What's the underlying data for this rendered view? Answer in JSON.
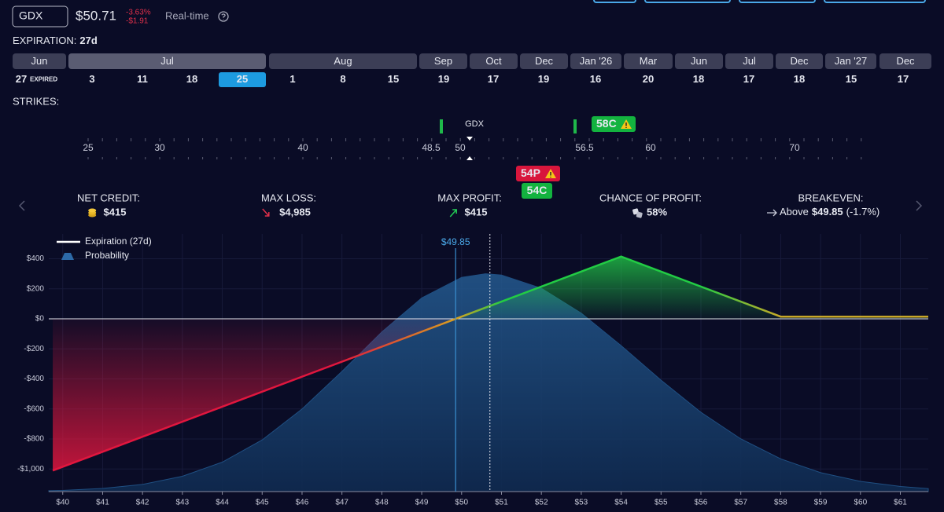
{
  "header": {
    "symbol": "GDX",
    "price": "$50.71",
    "change_pct": "-3.63%",
    "change_abs": "-$1.91",
    "feed": "Real-time"
  },
  "expiration": {
    "label": "EXPIRATION:",
    "days": "27d",
    "months": [
      "Jun",
      "Jul",
      "Aug",
      "Sep",
      "Oct",
      "Dec",
      "Jan '26",
      "Mar",
      "Jun",
      "Jul",
      "Dec",
      "Jan '27",
      "Dec"
    ],
    "dates": [
      "27",
      "3",
      "11",
      "18",
      "25",
      "1",
      "8",
      "15",
      "19",
      "17",
      "19",
      "16",
      "20",
      "18",
      "17",
      "18",
      "15",
      "17"
    ],
    "expired_note": "EXPIRED",
    "selected_month": 1,
    "selected_date": 4
  },
  "strikes": {
    "label": "STRIKES:",
    "ticks": [
      "25",
      "30",
      "40",
      "48.5",
      "50",
      "56.5",
      "60",
      "70"
    ],
    "underlying": "GDX",
    "legs": [
      {
        "label": "58C",
        "side": "call"
      },
      {
        "label": "54P",
        "side": "put"
      },
      {
        "label": "54C",
        "side": "call"
      }
    ]
  },
  "stats": [
    {
      "label": "NET CREDIT:",
      "value": "$415"
    },
    {
      "label": "MAX LOSS:",
      "value": "$4,985"
    },
    {
      "label": "MAX PROFIT:",
      "value": "$415"
    },
    {
      "label": "CHANCE OF PROFIT:",
      "value": "58%"
    }
  ],
  "breakeven_stat": {
    "label": "BREAKEVEN:",
    "prefix": "Above",
    "value": "$49.85",
    "suffix": "(-1.7%)"
  },
  "chart_data": {
    "type": "line",
    "series": [
      {
        "name": "Expiration (27d)",
        "color": "#ffffff",
        "x": [
          39.75,
          49.85,
          54,
          58,
          61.7
        ],
        "values": [
          -1010,
          0,
          415,
          15,
          15
        ]
      },
      {
        "name": "Probability",
        "color": "#1f4f82",
        "kind": "area",
        "x": [
          39.65,
          40,
          41,
          42,
          43,
          44,
          45,
          46,
          47,
          48,
          49,
          50,
          50.6,
          51,
          52,
          53,
          54,
          55,
          56,
          57,
          58,
          59,
          60,
          61,
          61.7
        ],
        "values": [
          -1144,
          -1142,
          -1129,
          -1102,
          -1048,
          -954,
          -806,
          -600,
          -350,
          -87,
          139,
          276,
          300,
          292,
          204,
          38,
          -178,
          -408,
          -622,
          -799,
          -932,
          -1024,
          -1082,
          -1116,
          -1130
        ]
      }
    ],
    "xlim": [
      39.65,
      61.7
    ],
    "ylim": [
      -1150,
      565
    ],
    "xticks": [
      {
        "value": 40,
        "label": "$40"
      },
      {
        "value": 41,
        "label": "$41"
      },
      {
        "value": 42,
        "label": "$42"
      },
      {
        "value": 43,
        "label": "$43"
      },
      {
        "value": 44,
        "label": "$44"
      },
      {
        "value": 45,
        "label": "$45"
      },
      {
        "value": 46,
        "label": "$46"
      },
      {
        "value": 47,
        "label": "$47"
      },
      {
        "value": 48,
        "label": "$48"
      },
      {
        "value": 49,
        "label": "$49"
      },
      {
        "value": 50,
        "label": "$50"
      },
      {
        "value": 51,
        "label": "$51"
      },
      {
        "value": 52,
        "label": "$52"
      },
      {
        "value": 53,
        "label": "$53"
      },
      {
        "value": 54,
        "label": "$54"
      },
      {
        "value": 55,
        "label": "$55"
      },
      {
        "value": 56,
        "label": "$56"
      },
      {
        "value": 57,
        "label": "$57"
      },
      {
        "value": 58,
        "label": "$58"
      },
      {
        "value": 59,
        "label": "$59"
      },
      {
        "value": 60,
        "label": "$60"
      },
      {
        "value": 61,
        "label": "$61"
      }
    ],
    "yticks": [
      {
        "value": 400,
        "label": "$400"
      },
      {
        "value": 200,
        "label": "$200"
      },
      {
        "value": 0,
        "label": "$0"
      },
      {
        "value": -200,
        "label": "-$200"
      },
      {
        "value": -400,
        "label": "-$400"
      },
      {
        "value": -600,
        "label": "-$600"
      },
      {
        "value": -800,
        "label": "-$800"
      },
      {
        "value": -1000,
        "label": "-$1,000"
      }
    ],
    "grid": true,
    "legend": "upper left",
    "breakeven": {
      "value": 49.85,
      "label": "$49.85"
    },
    "current_price": 50.71
  }
}
